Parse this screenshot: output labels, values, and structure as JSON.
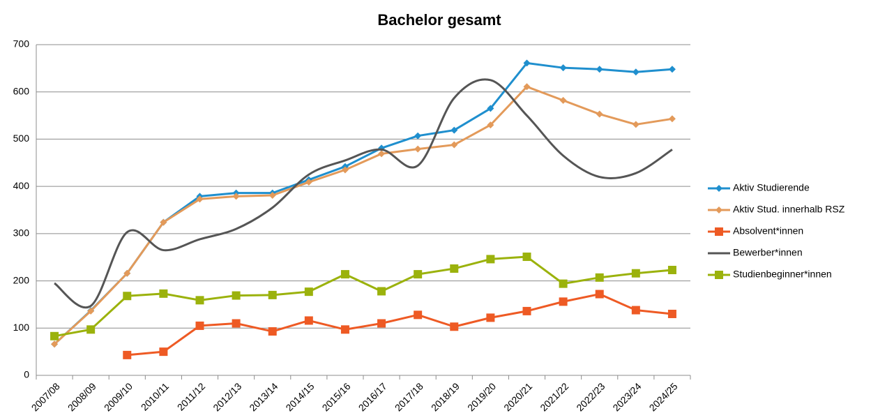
{
  "chart_data": {
    "type": "line",
    "title": "Bachelor gesamt",
    "categories": [
      "2007/08",
      "2008/09",
      "2009/10",
      "2010/11",
      "2011/12",
      "2012/13",
      "2013/14",
      "2014/15",
      "2015/16",
      "2016/17",
      "2017/18",
      "2018/19",
      "2019/20",
      "2020/21",
      "2021/22",
      "2022/23",
      "2023/24",
      "2024/25"
    ],
    "series": [
      {
        "name": "Aktiv Studierende",
        "color": "#1f8fce",
        "marker": "diamond",
        "values": [
          66,
          137,
          216,
          324,
          379,
          386,
          386,
          414,
          442,
          481,
          507,
          519,
          565,
          661,
          651,
          648,
          642,
          648
        ]
      },
      {
        "name": "Aktiv Stud. innerhalb RSZ",
        "color": "#e39a5a",
        "marker": "diamond",
        "values": [
          66,
          136,
          216,
          324,
          373,
          379,
          381,
          409,
          435,
          469,
          479,
          488,
          530,
          611,
          582,
          553,
          531,
          543
        ]
      },
      {
        "name": "Absolvent*innen",
        "color": "#ee5a24",
        "marker": "square",
        "values": [
          null,
          null,
          43,
          50,
          105,
          110,
          93,
          116,
          97,
          110,
          128,
          103,
          122,
          136,
          156,
          172,
          138,
          130
        ]
      },
      {
        "name": "Bewerber*innen",
        "color": "#555555",
        "marker": "none",
        "smooth": true,
        "values": [
          195,
          147,
          303,
          265,
          288,
          310,
          355,
          425,
          455,
          478,
          444,
          587,
          625,
          550,
          465,
          420,
          428,
          478
        ]
      },
      {
        "name": "Studienbeginner*innen",
        "color": "#9bb20c",
        "marker": "square",
        "values": [
          83,
          97,
          168,
          173,
          159,
          169,
          170,
          177,
          214,
          178,
          214,
          226,
          246,
          251,
          194,
          207,
          216,
          223
        ]
      }
    ],
    "ylim": [
      0,
      700
    ],
    "yticks": [
      0,
      100,
      200,
      300,
      400,
      500,
      600,
      700
    ],
    "grid": true,
    "legend": "right"
  }
}
